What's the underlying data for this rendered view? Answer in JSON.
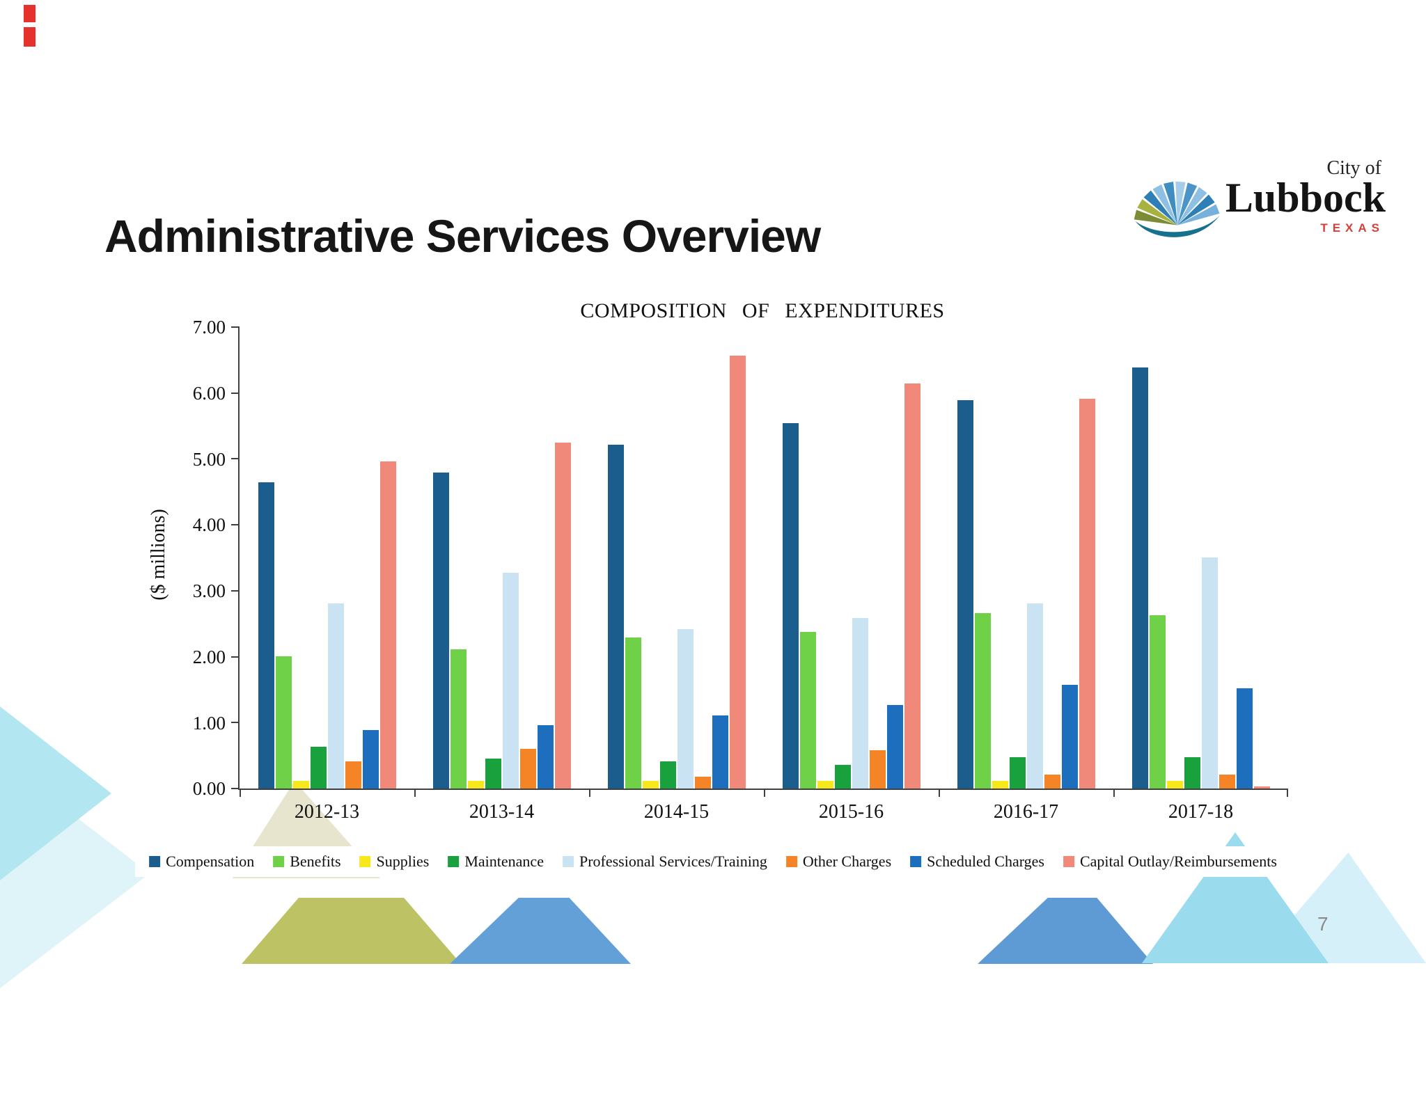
{
  "slide": {
    "title": "Administrative Services Overview",
    "page_number": "7"
  },
  "logo": {
    "city_of": "City of",
    "name": "Lubbock",
    "state": "TEXAS"
  },
  "chart_data": {
    "type": "bar",
    "title": "COMPOSITION OF EXPENDITURES",
    "ylabel": "($ millions)",
    "ylim": [
      0,
      7
    ],
    "ytick_labels": [
      "0.00",
      "1.00",
      "2.00",
      "3.00",
      "4.00",
      "5.00",
      "6.00",
      "7.00"
    ],
    "grid": false,
    "legend_position": "bottom",
    "categories": [
      "2012-13",
      "2013-14",
      "2014-15",
      "2015-16",
      "2016-17",
      "2017-18"
    ],
    "series": [
      {
        "name": "Compensation",
        "color": "#1b5e8e",
        "values": [
          4.65,
          4.79,
          5.22,
          5.54,
          5.89,
          6.39
        ]
      },
      {
        "name": "Benefits",
        "color": "#6fd148",
        "values": [
          2.01,
          2.11,
          2.29,
          2.38,
          2.66,
          2.63
        ]
      },
      {
        "name": "Supplies",
        "color": "#f7e81c",
        "values": [
          0.12,
          0.12,
          0.12,
          0.12,
          0.12,
          0.12
        ]
      },
      {
        "name": "Maintenance",
        "color": "#19a13d",
        "values": [
          0.63,
          0.45,
          0.41,
          0.36,
          0.48,
          0.48
        ]
      },
      {
        "name": "Professional Services/Training",
        "color": "#c9e3f2",
        "values": [
          2.81,
          3.27,
          2.42,
          2.59,
          2.81,
          3.51
        ]
      },
      {
        "name": "Other Charges",
        "color": "#f58426",
        "values": [
          0.41,
          0.6,
          0.18,
          0.58,
          0.21,
          0.21
        ]
      },
      {
        "name": "Scheduled Charges",
        "color": "#1d6fbd",
        "values": [
          0.89,
          0.96,
          1.11,
          1.27,
          1.57,
          1.52
        ]
      },
      {
        "name": "Capital Outlay/Reimbursements",
        "color": "#f0897a",
        "values": [
          4.96,
          5.25,
          6.57,
          6.14,
          5.91,
          0.03
        ]
      }
    ]
  }
}
